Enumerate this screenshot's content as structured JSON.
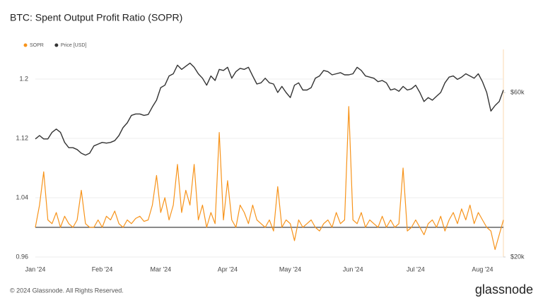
{
  "chart_data": {
    "type": "line",
    "title": "BTC: Spent Output Profit Ratio (SOPR)",
    "categories": [
      "Jan '24",
      null,
      null,
      null,
      null,
      null,
      null,
      null,
      null,
      null,
      null,
      null,
      null,
      null,
      null,
      null,
      "Feb '24",
      null,
      null,
      null,
      null,
      null,
      null,
      null,
      null,
      null,
      null,
      null,
      null,
      null,
      "Mar '24",
      null,
      null,
      null,
      null,
      null,
      null,
      null,
      null,
      null,
      null,
      null,
      null,
      null,
      null,
      null,
      "Apr '24",
      null,
      null,
      null,
      null,
      null,
      null,
      null,
      null,
      null,
      null,
      null,
      null,
      null,
      null,
      "May '24",
      null,
      null,
      null,
      null,
      null,
      null,
      null,
      null,
      null,
      null,
      null,
      null,
      null,
      null,
      "Jun '24",
      null,
      null,
      null,
      null,
      null,
      null,
      null,
      null,
      null,
      null,
      null,
      null,
      null,
      null,
      "Jul '24",
      null,
      null,
      null,
      null,
      null,
      null,
      null,
      null,
      null,
      null,
      null,
      null,
      null,
      null,
      null,
      "Aug '24",
      null,
      null,
      null,
      null,
      null
    ],
    "series": [
      {
        "name": "SOPR",
        "color": "#f7931a",
        "values": [
          1.0,
          1.03,
          1.075,
          1.01,
          1.005,
          1.02,
          1.0,
          1.015,
          1.005,
          1.0,
          1.01,
          1.05,
          1.005,
          1.0,
          1.0,
          1.01,
          1.0,
          1.015,
          1.01,
          1.022,
          1.005,
          1.0,
          1.01,
          1.005,
          1.012,
          1.015,
          1.008,
          1.01,
          1.03,
          1.07,
          1.02,
          1.04,
          1.01,
          1.03,
          1.085,
          1.02,
          1.05,
          1.03,
          1.085,
          1.01,
          1.03,
          1.0,
          1.02,
          1.005,
          1.128,
          1.01,
          1.063,
          1.01,
          1.0,
          1.03,
          1.02,
          1.005,
          1.03,
          1.01,
          1.005,
          1.0,
          1.01,
          0.995,
          1.055,
          1.0,
          1.01,
          1.005,
          0.982,
          1.01,
          1.0,
          1.005,
          1.01,
          1.0,
          0.995,
          1.005,
          1.01,
          1.0,
          1.02,
          1.005,
          1.01,
          1.163,
          1.01,
          1.005,
          1.02,
          1.0,
          1.01,
          1.005,
          1.0,
          1.015,
          1.0,
          1.01,
          1.0,
          1.005,
          1.08,
          0.995,
          1.0,
          1.01,
          1.0,
          0.99,
          1.005,
          1.01,
          1.0,
          1.015,
          0.995,
          1.01,
          1.02,
          1.005,
          1.025,
          1.01,
          1.03,
          1.005,
          1.02,
          1.01,
          1.0,
          0.995,
          0.97,
          0.99,
          1.01
        ]
      },
      {
        "name": "Price [USD]",
        "color": "#333333",
        "axis": "y2",
        "values": [
          44000,
          45000,
          44000,
          44000,
          46000,
          47000,
          46000,
          43000,
          41500,
          41500,
          41000,
          40000,
          39500,
          40000,
          42000,
          42500,
          43000,
          42800,
          43000,
          43500,
          45000,
          47500,
          49000,
          51500,
          52000,
          52000,
          51500,
          51800,
          54500,
          57000,
          62000,
          63000,
          67000,
          68000,
          72000,
          70000,
          71500,
          73000,
          71000,
          68000,
          66000,
          63000,
          67000,
          65000,
          70000,
          69500,
          71000,
          66000,
          69000,
          70500,
          70000,
          71000,
          67000,
          63500,
          64000,
          66000,
          64000,
          63500,
          60000,
          62500,
          60000,
          58000,
          63000,
          64000,
          61000,
          61000,
          62000,
          66000,
          67000,
          69500,
          69000,
          67500,
          68000,
          68500,
          67500,
          67500,
          68000,
          71000,
          69500,
          67000,
          66500,
          66000,
          64500,
          65000,
          64000,
          61000,
          61500,
          60500,
          62500,
          61000,
          61500,
          63000,
          60000,
          56500,
          58000,
          57000,
          58500,
          60000,
          64000,
          66500,
          67000,
          65500,
          66500,
          68000,
          67000,
          66000,
          68000,
          64500,
          60000,
          53000,
          55000,
          56500,
          61000
        ]
      }
    ],
    "ylim": [
      0.96,
      1.24
    ],
    "yticks": [
      0.96,
      1.04,
      1.12,
      1.2
    ],
    "y2lim": [
      20000,
      80000
    ],
    "y2log": true,
    "y2ticks": [
      {
        "value": 20000,
        "label": "$20k"
      },
      {
        "value": 60000,
        "label": "$60k"
      }
    ],
    "hline": 1,
    "grid": true
  },
  "footer": "© 2024 Glassnode. All Rights Reserved.",
  "logo": "glassnode"
}
